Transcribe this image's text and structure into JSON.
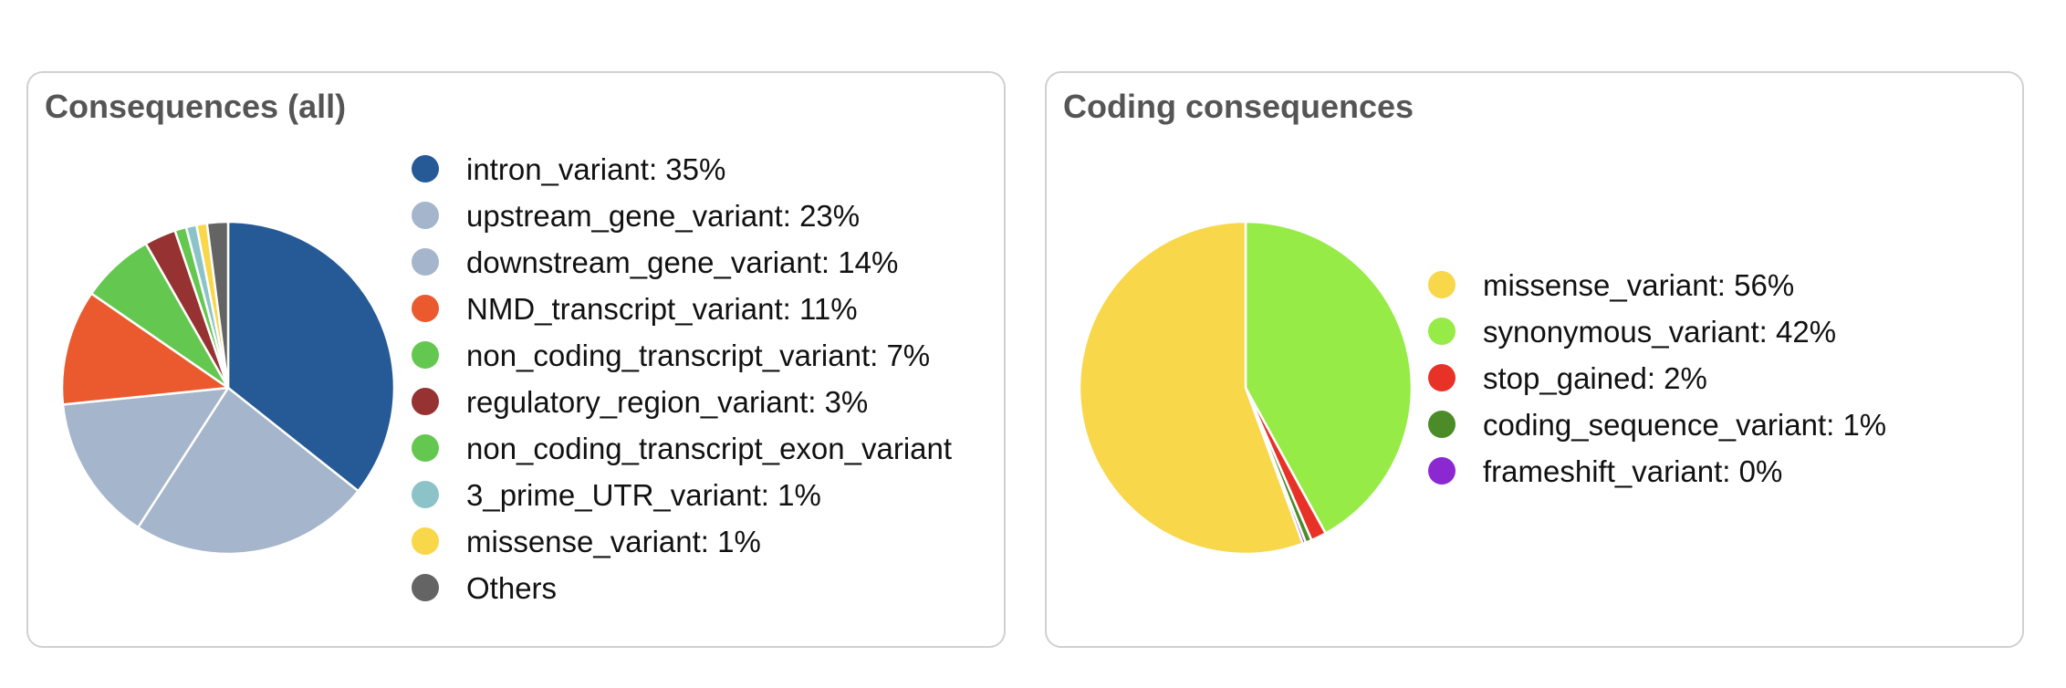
{
  "panels": [
    {
      "title": "Consequences (all)",
      "legend": [
        {
          "label": "intron_variant: 35%",
          "color": "#255a96"
        },
        {
          "label": "upstream_gene_variant: 23%",
          "color": "#a5b5cc"
        },
        {
          "label": "downstream_gene_variant: 14%",
          "color": "#a5b5cc"
        },
        {
          "label": "NMD_transcript_variant: 11%",
          "color": "#eb5a2e"
        },
        {
          "label": "non_coding_transcript_variant: 7%",
          "color": "#64c850"
        },
        {
          "label": "regulatory_region_variant: 3%",
          "color": "#963232"
        },
        {
          "label": "non_coding_transcript_exon_variant",
          "color": "#64c850"
        },
        {
          "label": "3_prime_UTR_variant: 1%",
          "color": "#8cc3c8"
        },
        {
          "label": "missense_variant: 1%",
          "color": "#f8d74a"
        },
        {
          "label": "Others",
          "color": "#646464"
        }
      ]
    },
    {
      "title": "Coding consequences",
      "legend": [
        {
          "label": "missense_variant: 56%",
          "color": "#f8d74a"
        },
        {
          "label": "synonymous_variant: 42%",
          "color": "#96eb46"
        },
        {
          "label": "stop_gained: 2%",
          "color": "#e83228"
        },
        {
          "label": "coding_sequence_variant: 1%",
          "color": "#4b8c28"
        },
        {
          "label": "frameshift_variant: 0%",
          "color": "#8c28d2"
        }
      ]
    }
  ],
  "chart_data": [
    {
      "type": "pie",
      "title": "Consequences (all)",
      "start_angle": "12 o'clock",
      "direction": "clockwise",
      "slices": [
        {
          "label": "intron_variant",
          "value": 35,
          "color": "#255a96"
        },
        {
          "label": "upstream_gene_variant",
          "value": 23,
          "color": "#a5b5cc"
        },
        {
          "label": "downstream_gene_variant",
          "value": 14,
          "color": "#a5b5cc"
        },
        {
          "label": "NMD_transcript_variant",
          "value": 11,
          "color": "#eb5a2e"
        },
        {
          "label": "non_coding_transcript_variant",
          "value": 7,
          "color": "#64c850"
        },
        {
          "label": "regulatory_region_variant",
          "value": 3,
          "color": "#963232"
        },
        {
          "label": "non_coding_transcript_exon_variant",
          "value": 1.1,
          "color": "#64c850"
        },
        {
          "label": "3_prime_UTR_variant",
          "value": 1,
          "color": "#8cc3c8"
        },
        {
          "label": "missense_variant",
          "value": 1,
          "color": "#f8d74a"
        },
        {
          "label": "Others",
          "value": 2,
          "color": "#646464"
        }
      ]
    },
    {
      "type": "pie",
      "title": "Coding consequences",
      "start_angle": "12 o'clock",
      "direction": "clockwise",
      "slices": [
        {
          "label": "synonymous_variant",
          "value": 42,
          "color": "#96eb46"
        },
        {
          "label": "stop_gained",
          "value": 1.5,
          "color": "#e83228"
        },
        {
          "label": "coding_sequence_variant",
          "value": 0.6,
          "color": "#4b8c28"
        },
        {
          "label": "frameshift_variant",
          "value": 0.3,
          "color": "#8c28d2"
        },
        {
          "label": "missense_variant",
          "value": 55.6,
          "color": "#f8d74a"
        }
      ]
    }
  ]
}
